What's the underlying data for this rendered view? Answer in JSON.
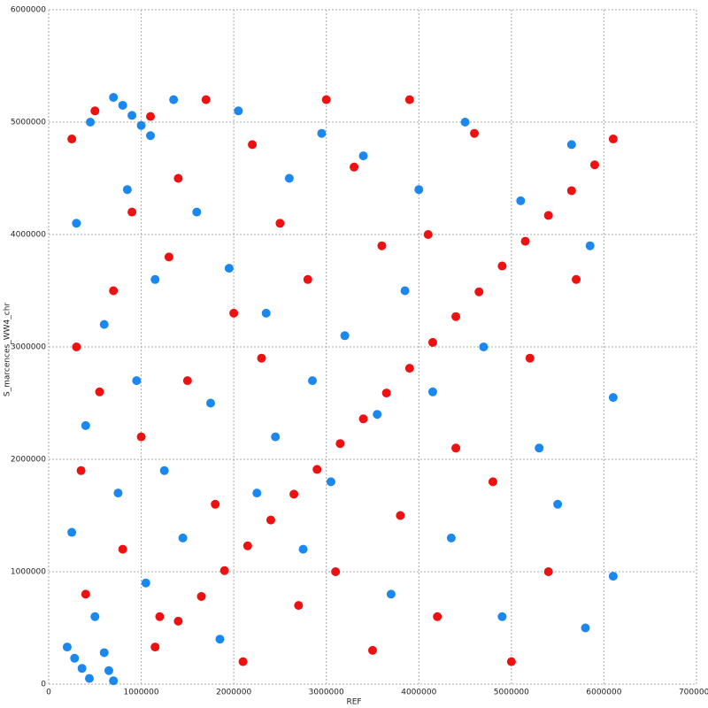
{
  "chart_data": {
    "type": "scatter",
    "xlabel": "REF",
    "ylabel": "S_marcences_WW4_chr",
    "xlim": [
      0,
      7000000
    ],
    "ylim": [
      0,
      6000000
    ],
    "xticks": [
      0,
      1000000,
      2000000,
      3000000,
      4000000,
      5000000,
      6000000,
      7000000
    ],
    "yticks": [
      0,
      1000000,
      2000000,
      3000000,
      4000000,
      5000000,
      6000000
    ],
    "grid": true,
    "series": [
      {
        "color": "#ee1111",
        "x": [
          1150000,
          1400000,
          1650000,
          1900000,
          2150000,
          2400000,
          2650000,
          2900000,
          3150000,
          3400000,
          3650000,
          3900000,
          4150000,
          4400000,
          4650000,
          4900000,
          5150000,
          5400000,
          5650000,
          5900000,
          250000,
          300000,
          350000,
          400000,
          500000,
          550000,
          700000,
          800000,
          900000,
          1000000,
          1100000,
          1200000,
          1300000,
          1400000,
          1500000,
          1700000,
          1800000,
          2000000,
          2100000,
          2200000,
          2300000,
          2500000,
          2700000,
          2800000,
          3000000,
          3100000,
          3300000,
          3500000,
          3600000,
          3800000,
          3900000,
          4100000,
          4200000,
          4400000,
          4600000,
          4800000,
          5000000,
          5200000,
          5400000,
          5700000,
          6100000
        ],
        "values": [
          330000,
          560000,
          780000,
          1010000,
          1230000,
          1460000,
          1690000,
          1910000,
          2140000,
          2360000,
          2590000,
          2810000,
          3040000,
          3270000,
          3490000,
          3720000,
          3940000,
          4170000,
          4390000,
          4620000,
          4850000,
          3000000,
          1900000,
          800000,
          5100000,
          2600000,
          3500000,
          1200000,
          4200000,
          2200000,
          5050000,
          600000,
          3800000,
          4500000,
          2700000,
          5200000,
          1600000,
          3300000,
          200000,
          4800000,
          2900000,
          4100000,
          700000,
          3600000,
          5200000,
          1000000,
          4600000,
          300000,
          3900000,
          1500000,
          5200000,
          4000000,
          600000,
          2100000,
          4900000,
          1800000,
          200000,
          2900000,
          1000000,
          3600000,
          4850000
        ]
      },
      {
        "color": "#1a88ee",
        "x": [
          700000,
          800000,
          900000,
          1000000,
          1100000,
          200000,
          280000,
          360000,
          440000,
          600000,
          650000,
          700000,
          250000,
          300000,
          400000,
          450000,
          500000,
          600000,
          750000,
          850000,
          950000,
          1050000,
          1150000,
          1250000,
          1350000,
          1450000,
          1600000,
          1750000,
          1850000,
          1950000,
          2050000,
          2250000,
          2350000,
          2450000,
          2600000,
          2750000,
          2850000,
          2950000,
          3050000,
          3200000,
          3400000,
          3550000,
          3700000,
          3850000,
          4000000,
          4150000,
          4350000,
          4500000,
          4700000,
          4900000,
          5100000,
          5300000,
          5500000,
          5650000,
          5800000,
          5850000,
          6100000,
          6100000
        ],
        "values": [
          5220000,
          5150000,
          5060000,
          4970000,
          4880000,
          330000,
          230000,
          140000,
          50000,
          280000,
          120000,
          30000,
          1350000,
          4100000,
          2300000,
          5000000,
          600000,
          3200000,
          1700000,
          4400000,
          2700000,
          900000,
          3600000,
          1900000,
          5200000,
          1300000,
          4200000,
          2500000,
          400000,
          3700000,
          5100000,
          1700000,
          3300000,
          2200000,
          4500000,
          1200000,
          2700000,
          4900000,
          1800000,
          3100000,
          4700000,
          2400000,
          800000,
          3500000,
          4400000,
          2600000,
          1300000,
          5000000,
          3000000,
          600000,
          4300000,
          2100000,
          1600000,
          4800000,
          500000,
          3900000,
          2550000,
          960000
        ]
      }
    ]
  }
}
